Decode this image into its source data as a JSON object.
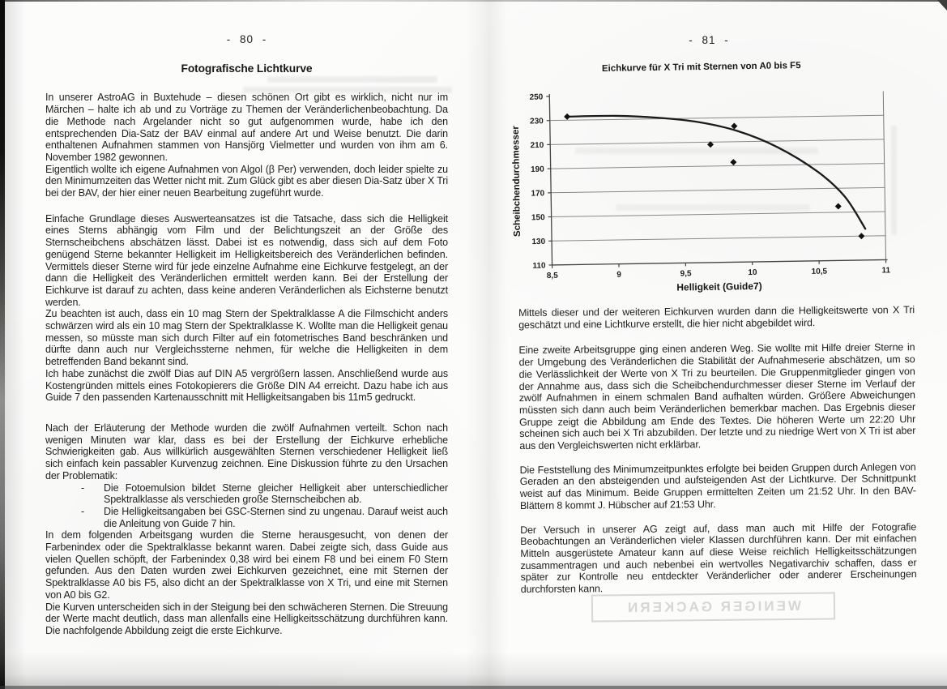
{
  "left_page": {
    "page_number": "- 80 -",
    "heading": "Fotografische Lichtkurve",
    "para1": "In unserer AstroAG in Buxtehude – diesen schönen Ort gibt es wirklich, nicht nur im Märchen – halte ich ab und zu Vorträge zu Themen der Veränderlichenbeobachtung. Da die Methode nach Argelander nicht so gut aufgenommen wurde, habe ich den entsprechenden Dia-Satz der BAV einmal auf andere Art und Weise benutzt. Die darin enthaltenen Aufnahmen stammen von Hansjörg Vielmetter und wurden von ihm am 6. November 1982 gewonnen.\nEigentlich wollte ich eigene Aufnahmen von Algol (β Per) verwenden, doch leider spielte zu den Minimumzeiten das Wetter nicht mit. Zum Glück gibt es aber diesen Dia-Satz über X Tri bei der BAV, der hier einer neuen Bearbeitung zugeführt wurde.",
    "para2": "Einfache Grundlage dieses Auswerteansatzes ist die Tatsache, dass sich die Helligkeit eines Sterns abhängig vom Film und der Belichtungszeit an der Größe des Sternscheibchens abschätzen lässt. Dabei ist es notwendig, dass sich auf dem Foto genügend Sterne bekannter Helligkeit im Helligkeitsbereich des Veränderlichen befinden. Vermittels dieser Sterne wird für jede einzelne Aufnahme eine Eichkurve festgelegt, an der dann die Helligkeit des Veränderlichen ermittelt werden kann. Bei der Erstellung der Eichkurve ist darauf zu achten, dass keine anderen Veränderlichen als Eichsterne benutzt werden.\nZu beachten ist auch, dass ein 10 mag Stern der Spektralklasse A die Filmschicht anders schwärzen wird als ein 10 mag Stern der Spektralklasse K. Wollte man die Helligkeit genau messen, so müsste man sich durch Filter auf ein fotometrisches Band beschränken und dürfte dann auch nur Vergleichssterne nehmen, für welche die Helligkeiten in dem betreffenden Band bekannt sind.\nIch habe zunächst die zwölf Dias auf DIN A5 vergrößern lassen. Anschließend wurde aus Kostengründen mittels eines Fotokopierers die Größe DIN A4 erreicht. Dazu habe ich aus Guide 7 den passenden Kartenausschnitt mit Helligkeitsangaben bis 11m5 gedruckt.",
    "para3": "Nach der Erläuterung der Methode wurden die zwölf Aufnahmen verteilt. Schon nach wenigen Minuten war klar, dass es bei der Erstellung der Eichkurve erhebliche Schwierigkeiten gab. Aus willkürlich ausgewählten Sternen verschiedener Helligkeit ließ sich einfach kein passabler Kurvenzug zeichnen. Eine Diskussion führte zu den Ursachen der Problematik:",
    "bullet_marker": "-",
    "bullets": [
      "Die Fotoemulsion bildet Sterne gleicher Helligkeit aber unterschiedlicher Spektralklasse als verschieden große Sternscheibchen ab.",
      "Die Helligkeitsangaben bei GSC-Sternen sind zu ungenau. Darauf weist auch die Anleitung von Guide 7 hin."
    ],
    "para4": "In dem folgenden Arbeitsgang wurden die Sterne herausgesucht, von denen der Farbenindex oder die Spektralklasse bekannt waren. Dabei zeigte sich, dass Guide aus vielen Quellen schöpft, der Farbenindex 0,38 wird bei einem F8 und bei einem F0 Stern gefunden. Aus den Daten wurden zwei Eichkurven gezeichnet, eine mit Sternen der Spektralklasse A0 bis F5, also dicht an der Spektralklasse von X Tri, und eine mit Sternen von A0 bis G2.\nDie Kurven unterscheiden sich in der Steigung bei den schwächeren Sternen. Die Streuung der Werte macht deutlich, dass man allenfalls eine Helligkeitsschätzung durchführen kann. Die nachfolgende Abbildung zeigt die erste Eichkurve."
  },
  "right_page": {
    "page_number": "- 81 -",
    "para1": "Mittels dieser und der weiteren Eichkurven wurden dann die Helligkeitswerte von X Tri geschätzt und eine Lichtkurve erstellt, die hier nicht abgebildet wird.",
    "para2": "Eine zweite Arbeitsgruppe ging einen anderen Weg. Sie wollte mit Hilfe dreier Sterne in der Umgebung des Veränderlichen die Stabilität der Aufnahmeserie abschätzen, um so die Verlässlichkeit der Werte von X Tri zu beurteilen. Die Gruppenmitglieder gingen von der Annahme aus, dass sich die Scheibchendurchmesser dieser Sterne im Verlauf der zwölf Aufnahmen in einem schmalen Band aufhalten würden. Größere Abweichungen müssten sich dann auch beim Veränderlichen bemerkbar machen. Das Ergebnis dieser Gruppe zeigt die Abbildung am Ende des Textes. Die höheren Werte um 22:20 Uhr scheinen sich auch bei X Tri abzubilden. Der letzte und zu niedrige Wert von X Tri ist aber aus den Vergleichswerten nicht erklärbar.",
    "para3": "Die Feststellung des Minimumzeitpunktes erfolgte bei beiden Gruppen durch Anlegen von Geraden an den absteigenden und aufsteigenden Ast der Lichtkurve. Der Schnittpunkt weist auf das Minimum. Beide Gruppen ermittelten Zeiten um 21:52 Uhr. In den BAV-Blättern 8 kommt J. Hübscher auf 21:53 Uhr.",
    "para4": "Der Versuch in unserer AG zeigt auf, dass man auch mit Hilfe der Fotografie Beobachtungen an Veränderlichen vieler Klassen durchführen kann. Der mit einfachen Mitteln ausgerüstete Amateur kann auf diese Weise reichlich Helligkeitsschätzungen zusammentragen und auch nebenbei ein wertvolles Negativarchiv schaffen, dass er später zur Kontrolle neu entdeckter Veränderlicher oder anderer Erscheinungen durchforsten kann.",
    "ghost_text": "WENIGER GACKERN"
  },
  "chart_data": {
    "type": "scatter",
    "title": "Eichkurve für X Tri mit Sternen von A0 bis F5",
    "xlabel": "Helligkeit (Guide7)",
    "ylabel": "Scheibchendurchmesser",
    "xlim": [
      8.5,
      11
    ],
    "ylim": [
      110,
      250
    ],
    "x_ticks": [
      "8,5",
      "9",
      "9,5",
      "10",
      "10,5",
      "11"
    ],
    "x_tick_values": [
      8.5,
      9,
      9.5,
      10,
      10.5,
      11
    ],
    "y_ticks": [
      110,
      130,
      150,
      170,
      190,
      210,
      230,
      250
    ],
    "grid": "horizontal-only",
    "legend": "none",
    "marker": "diamond",
    "points": [
      {
        "x": 8.63,
        "y": 233
      },
      {
        "x": 9.7,
        "y": 208
      },
      {
        "x": 9.88,
        "y": 223
      },
      {
        "x": 9.87,
        "y": 193
      },
      {
        "x": 10.65,
        "y": 155
      },
      {
        "x": 10.82,
        "y": 130
      }
    ],
    "trend": [
      [
        8.63,
        233
      ],
      [
        9.0,
        233
      ],
      [
        9.3,
        231
      ],
      [
        9.6,
        227
      ],
      [
        9.9,
        219
      ],
      [
        10.2,
        205
      ],
      [
        10.5,
        184
      ],
      [
        10.7,
        163
      ],
      [
        10.85,
        136
      ]
    ],
    "colors": {
      "curve": "#1b1b1b",
      "marker": "#111111",
      "grid": "#8a8a8a",
      "axis": "#444444"
    }
  }
}
